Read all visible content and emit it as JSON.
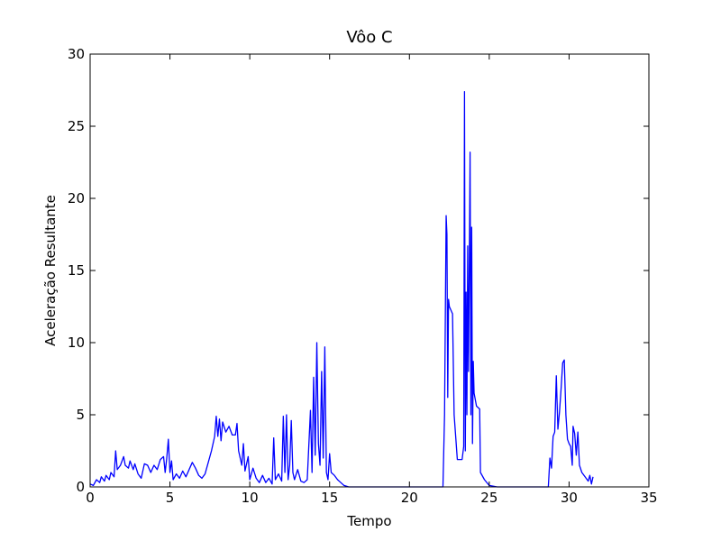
{
  "chart_data": {
    "type": "line",
    "title": "Vôo C",
    "x_label": "Tempo",
    "y_label": "Aceleração Resultante",
    "xlim": [
      0,
      35
    ],
    "ylim": [
      0,
      30
    ],
    "xticks": [
      0,
      5,
      10,
      15,
      20,
      25,
      30,
      35
    ],
    "yticks": [
      0,
      5,
      10,
      15,
      20,
      25,
      30
    ],
    "grid": false,
    "x": [
      0.0,
      0.2,
      0.4,
      0.6,
      0.7,
      0.9,
      1.0,
      1.2,
      1.3,
      1.5,
      1.6,
      1.7,
      1.9,
      2.1,
      2.2,
      2.4,
      2.5,
      2.7,
      2.8,
      3.0,
      3.2,
      3.4,
      3.6,
      3.8,
      4.0,
      4.2,
      4.4,
      4.6,
      4.7,
      4.8,
      4.9,
      5.0,
      5.1,
      5.2,
      5.4,
      5.6,
      5.8,
      6.0,
      6.2,
      6.4,
      6.6,
      6.8,
      7.0,
      7.2,
      7.4,
      7.6,
      7.8,
      7.9,
      8.0,
      8.1,
      8.2,
      8.3,
      8.5,
      8.7,
      8.9,
      9.1,
      9.2,
      9.3,
      9.5,
      9.6,
      9.7,
      9.9,
      10.0,
      10.2,
      10.4,
      10.6,
      10.8,
      11.0,
      11.2,
      11.4,
      11.5,
      11.6,
      11.8,
      12.0,
      12.1,
      12.2,
      12.3,
      12.4,
      12.5,
      12.6,
      12.7,
      12.8,
      13.0,
      13.2,
      13.4,
      13.6,
      13.8,
      13.9,
      14.0,
      14.1,
      14.2,
      14.3,
      14.4,
      14.5,
      14.6,
      14.7,
      14.8,
      14.9,
      15.0,
      15.1,
      15.3,
      15.5,
      15.7,
      15.9,
      16.2,
      20.0,
      22.1,
      22.2,
      22.3,
      22.35,
      22.4,
      22.45,
      22.5,
      22.7,
      22.8,
      23.0,
      23.3,
      23.4,
      23.45,
      23.5,
      23.55,
      23.6,
      23.65,
      23.7,
      23.75,
      23.8,
      23.85,
      23.9,
      23.95,
      24.0,
      24.05,
      24.2,
      24.4,
      24.45,
      24.7,
      25.0,
      25.5,
      28.7,
      28.8,
      28.9,
      29.0,
      29.1,
      29.2,
      29.3,
      29.4,
      29.5,
      29.6,
      29.7,
      29.8,
      29.9,
      30.0,
      30.1,
      30.2,
      30.25,
      30.35,
      30.45,
      30.55,
      30.65,
      30.8,
      31.0,
      31.2,
      31.3,
      31.4,
      31.5
    ],
    "series": [
      {
        "name": "Aceleração Resultante",
        "color": "#0000ff",
        "values": [
          0.2,
          0.1,
          0.5,
          0.3,
          0.7,
          0.4,
          0.8,
          0.5,
          1.0,
          0.7,
          2.5,
          1.2,
          1.5,
          2.1,
          1.5,
          1.3,
          1.8,
          1.2,
          1.6,
          0.9,
          0.6,
          1.6,
          1.5,
          1.0,
          1.5,
          1.2,
          1.9,
          2.1,
          1.0,
          2.0,
          3.3,
          1.0,
          1.8,
          0.5,
          0.9,
          0.6,
          1.1,
          0.7,
          1.2,
          1.7,
          1.3,
          0.8,
          0.6,
          0.9,
          1.7,
          2.5,
          3.5,
          4.9,
          3.5,
          4.7,
          3.2,
          4.5,
          3.8,
          4.2,
          3.6,
          3.6,
          4.4,
          2.5,
          1.5,
          3.0,
          1.1,
          2.1,
          0.5,
          1.3,
          0.6,
          0.3,
          0.8,
          0.3,
          0.6,
          0.2,
          3.4,
          0.5,
          0.9,
          0.4,
          4.9,
          1.0,
          5.0,
          0.5,
          1.5,
          4.6,
          1.0,
          0.5,
          1.2,
          0.4,
          0.3,
          0.5,
          5.3,
          1.0,
          7.6,
          2.2,
          10.0,
          3.0,
          1.5,
          8.0,
          2.0,
          9.7,
          1.0,
          0.5,
          2.3,
          1.0,
          0.8,
          0.5,
          0.3,
          0.1,
          0.0,
          0.0,
          0.0,
          5.0,
          18.8,
          17.5,
          6.2,
          13.0,
          12.5,
          12.0,
          5.0,
          1.9,
          1.9,
          2.8,
          27.4,
          2.5,
          13.5,
          5.0,
          16.7,
          8.0,
          15.0,
          23.2,
          5.0,
          18.0,
          3.0,
          8.7,
          6.5,
          5.6,
          5.4,
          1.0,
          0.5,
          0.1,
          0.0,
          0.0,
          2.0,
          1.3,
          3.5,
          3.8,
          7.7,
          4.0,
          5.2,
          6.8,
          8.6,
          8.8,
          5.0,
          3.3,
          3.0,
          2.8,
          1.5,
          4.2,
          3.7,
          2.2,
          3.8,
          1.5,
          1.0,
          0.7,
          0.4,
          0.8,
          0.2,
          0.7
        ]
      }
    ]
  }
}
